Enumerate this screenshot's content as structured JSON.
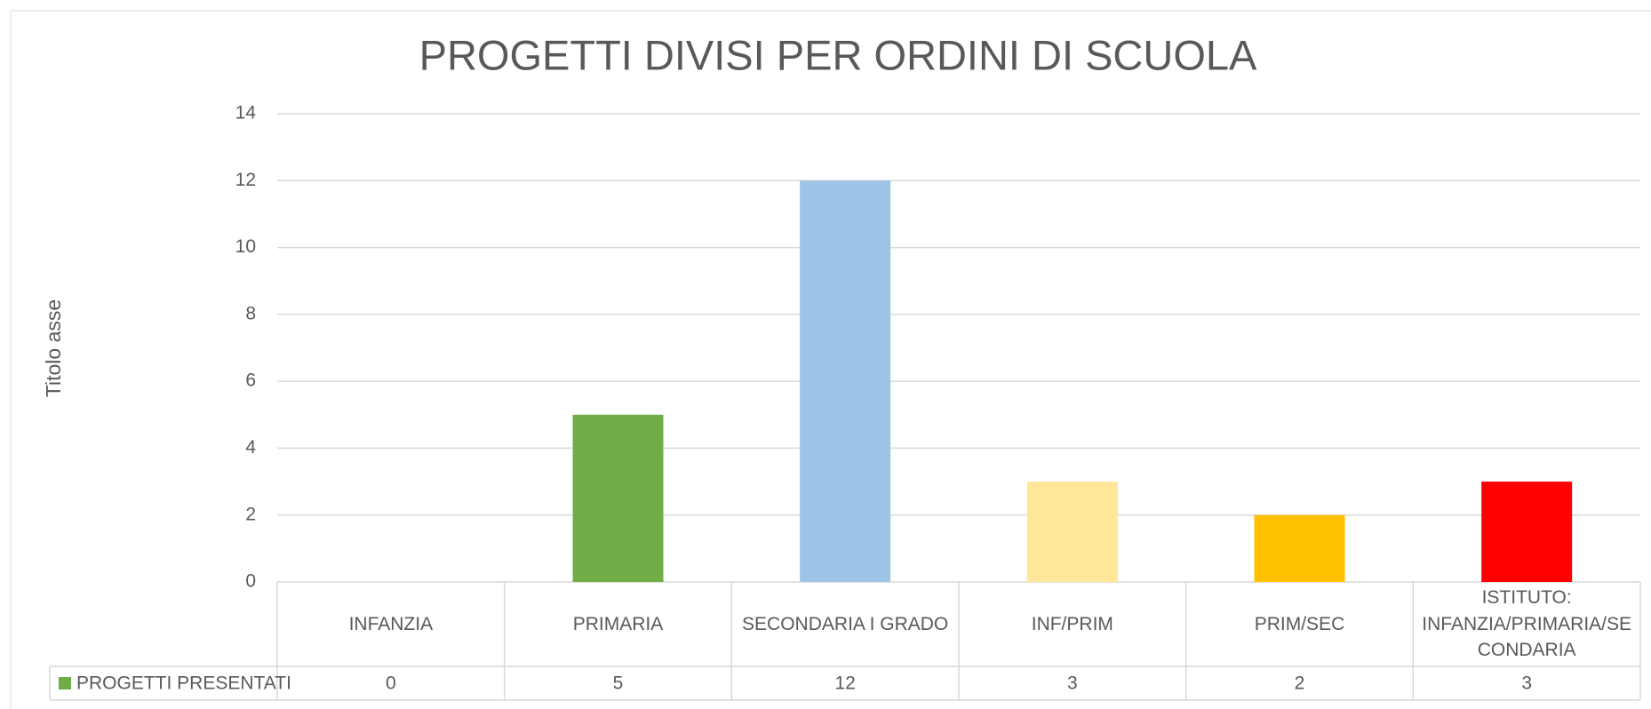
{
  "chart_data": {
    "type": "bar",
    "title": "PROGETTI DIVISI PER ORDINI DI SCUOLA",
    "y_axis_label": "Titolo asse",
    "categories": [
      "INFANZIA",
      "PRIMARIA",
      "SECONDARIA I GRADO",
      "INF/PRIM",
      "PRIM/SEC",
      "ISTITUTO: INFANZIA/PRIMARIA/SECONDARIA"
    ],
    "series": [
      {
        "name": "PROGETTI PRESENTATI",
        "color": "#70ad47",
        "values": [
          0,
          5,
          12,
          3,
          2,
          3
        ]
      }
    ],
    "bar_colors": [
      "#70ad47",
      "#70ad47",
      "#9dc3e6",
      "#ffe699",
      "#ffc000",
      "#ff0000"
    ],
    "ylim": [
      0,
      14
    ],
    "yticks": [
      0,
      2,
      4,
      6,
      8,
      10,
      12,
      14
    ],
    "grid": true,
    "data_table": true
  }
}
